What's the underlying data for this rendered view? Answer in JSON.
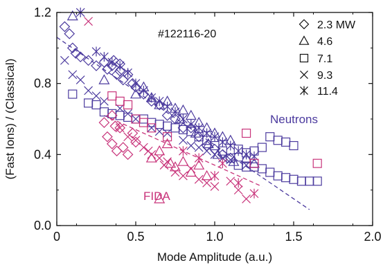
{
  "chart_data": {
    "type": "scatter",
    "xlabel": "Mode Amplitude (a.u.)",
    "ylabel": "(Fast Ions) / (Classical)",
    "xlim": [
      0,
      2.0
    ],
    "ylim": [
      0,
      1.2
    ],
    "xticks": [
      "0",
      "0.5",
      "1.0",
      "1.5",
      "2.0"
    ],
    "yticks": [
      "0.0",
      "0.4",
      "0.8",
      "1.2"
    ],
    "shot_label": "#122116-20",
    "colors": {
      "neutrons": "#4b3a9e",
      "fida": "#c8337a"
    },
    "annotations": [
      {
        "text": "Neutrons",
        "color_key": "neutrons"
      },
      {
        "text": "FIDA",
        "color_key": "fida"
      }
    ],
    "legend": [
      {
        "marker": "diamond",
        "label": "2.3 MW"
      },
      {
        "marker": "triangle",
        "label": "4.6"
      },
      {
        "marker": "square",
        "label": "7.1"
      },
      {
        "marker": "x",
        "label": "9.3"
      },
      {
        "marker": "asterisk",
        "label": "11.4"
      }
    ],
    "fit_lines": [
      {
        "name": "neutrons-fit",
        "color_key": "neutrons",
        "x": [
          0.0,
          1.6
        ],
        "y": [
          1.06,
          0.09
        ]
      },
      {
        "name": "fida-fit",
        "color_key": "fida",
        "x": [
          0.3,
          1.3
        ],
        "y": [
          0.62,
          0.22
        ]
      }
    ],
    "series": [
      {
        "group": "neutrons",
        "marker": "diamond",
        "points": [
          [
            0.05,
            1.12
          ],
          [
            0.08,
            1.08
          ],
          [
            0.1,
            1.0
          ],
          [
            0.12,
            0.97
          ],
          [
            0.15,
            0.95
          ],
          [
            0.2,
            0.93
          ],
          [
            0.25,
            0.9
          ],
          [
            0.3,
            0.92
          ],
          [
            0.32,
            0.88
          ],
          [
            0.35,
            0.9
          ],
          [
            0.38,
            0.85
          ],
          [
            0.4,
            0.87
          ],
          [
            0.42,
            0.82
          ],
          [
            0.45,
            0.85
          ],
          [
            0.48,
            0.8
          ],
          [
            0.5,
            0.78
          ],
          [
            0.55,
            0.74
          ],
          [
            0.6,
            0.7
          ],
          [
            0.65,
            0.68
          ],
          [
            0.7,
            0.62
          ],
          [
            0.75,
            0.6
          ],
          [
            0.8,
            0.55
          ],
          [
            0.85,
            0.55
          ],
          [
            0.9,
            0.5
          ],
          [
            0.95,
            0.45
          ],
          [
            1.0,
            0.43
          ],
          [
            1.05,
            0.4
          ],
          [
            1.1,
            0.38
          ],
          [
            0.36,
            0.93
          ],
          [
            0.4,
            0.91
          ]
        ]
      },
      {
        "group": "neutrons",
        "marker": "triangle",
        "points": [
          [
            0.1,
            1.18
          ],
          [
            0.3,
            0.82
          ],
          [
            0.5,
            0.74
          ],
          [
            0.6,
            0.72
          ],
          [
            0.65,
            0.68
          ],
          [
            0.7,
            0.7
          ],
          [
            0.75,
            0.66
          ],
          [
            0.8,
            0.65
          ],
          [
            0.85,
            0.62
          ],
          [
            0.9,
            0.58
          ],
          [
            0.95,
            0.55
          ],
          [
            1.0,
            0.52
          ],
          [
            1.05,
            0.5
          ],
          [
            1.1,
            0.48
          ],
          [
            0.55,
            0.78
          ],
          [
            0.78,
            0.6
          ],
          [
            0.88,
            0.52
          ],
          [
            0.96,
            0.46
          ],
          [
            1.02,
            0.4
          ],
          [
            1.12,
            0.36
          ],
          [
            1.2,
            0.38
          ],
          [
            1.25,
            0.35
          ]
        ]
      },
      {
        "group": "neutrons",
        "marker": "square",
        "points": [
          [
            0.1,
            0.74
          ],
          [
            0.2,
            0.69
          ],
          [
            0.25,
            0.68
          ],
          [
            0.3,
            0.64
          ],
          [
            0.35,
            0.63
          ],
          [
            0.4,
            0.62
          ],
          [
            0.45,
            0.61
          ],
          [
            0.5,
            0.6
          ],
          [
            0.55,
            0.6
          ],
          [
            0.6,
            0.58
          ],
          [
            0.65,
            0.57
          ],
          [
            0.7,
            0.56
          ],
          [
            0.75,
            0.55
          ],
          [
            0.8,
            0.54
          ],
          [
            0.85,
            0.53
          ],
          [
            0.9,
            0.5
          ],
          [
            0.95,
            0.48
          ],
          [
            1.0,
            0.45
          ],
          [
            1.05,
            0.42
          ],
          [
            1.1,
            0.38
          ],
          [
            1.15,
            0.34
          ],
          [
            1.2,
            0.33
          ],
          [
            1.25,
            0.33
          ],
          [
            1.3,
            0.32
          ],
          [
            1.35,
            0.3
          ],
          [
            1.4,
            0.28
          ],
          [
            1.45,
            0.27
          ],
          [
            1.5,
            0.26
          ],
          [
            1.55,
            0.25
          ],
          [
            1.6,
            0.25
          ],
          [
            1.65,
            0.25
          ],
          [
            1.35,
            0.5
          ],
          [
            1.4,
            0.48
          ],
          [
            1.45,
            0.47
          ],
          [
            1.5,
            0.45
          ],
          [
            1.3,
            0.44
          ],
          [
            1.25,
            0.42
          ],
          [
            1.2,
            0.41
          ],
          [
            1.15,
            0.43
          ]
        ]
      },
      {
        "group": "neutrons",
        "marker": "x",
        "points": [
          [
            0.05,
            0.93
          ],
          [
            0.1,
            0.85
          ],
          [
            0.15,
            0.82
          ],
          [
            0.2,
            0.76
          ],
          [
            0.25,
            0.73
          ],
          [
            0.3,
            0.7
          ],
          [
            0.4,
            0.66
          ],
          [
            0.5,
            0.6
          ],
          [
            0.6,
            0.55
          ],
          [
            0.7,
            0.52
          ],
          [
            0.8,
            0.48
          ],
          [
            0.9,
            0.44
          ],
          [
            1.0,
            0.4
          ],
          [
            1.1,
            0.37
          ],
          [
            1.2,
            0.34
          ],
          [
            0.45,
            0.63
          ],
          [
            0.65,
            0.53
          ],
          [
            0.85,
            0.45
          ],
          [
            0.95,
            0.42
          ],
          [
            1.05,
            0.38
          ]
        ]
      },
      {
        "group": "neutrons",
        "marker": "asterisk",
        "points": [
          [
            0.15,
            1.2
          ],
          [
            0.25,
            0.98
          ],
          [
            0.3,
            0.95
          ],
          [
            0.35,
            0.92
          ],
          [
            0.4,
            0.9
          ],
          [
            0.45,
            0.86
          ],
          [
            0.5,
            0.8
          ],
          [
            0.55,
            0.76
          ],
          [
            0.6,
            0.72
          ],
          [
            0.65,
            0.7
          ],
          [
            0.7,
            0.67
          ],
          [
            0.75,
            0.64
          ],
          [
            0.8,
            0.6
          ],
          [
            0.85,
            0.57
          ],
          [
            0.9,
            0.55
          ],
          [
            0.95,
            0.52
          ],
          [
            1.0,
            0.5
          ],
          [
            1.05,
            0.47
          ],
          [
            1.1,
            0.45
          ],
          [
            1.15,
            0.42
          ],
          [
            1.2,
            0.4
          ],
          [
            1.25,
            0.39
          ]
        ]
      },
      {
        "group": "fida",
        "marker": "diamond",
        "points": [
          [
            0.3,
            0.58
          ],
          [
            0.32,
            0.5
          ],
          [
            0.35,
            0.46
          ],
          [
            0.38,
            0.42
          ],
          [
            0.4,
            0.55
          ],
          [
            0.42,
            0.44
          ],
          [
            0.45,
            0.4
          ],
          [
            0.48,
            0.52
          ],
          [
            0.5,
            0.47
          ],
          [
            0.35,
            0.62
          ],
          [
            0.37,
            0.56
          ]
        ]
      },
      {
        "group": "fida",
        "marker": "triangle",
        "points": [
          [
            0.6,
            0.38
          ],
          [
            0.65,
            0.42
          ],
          [
            0.7,
            0.46
          ],
          [
            0.72,
            0.35
          ],
          [
            0.75,
            0.33
          ],
          [
            0.8,
            0.36
          ],
          [
            0.85,
            0.3
          ],
          [
            0.9,
            0.34
          ],
          [
            0.95,
            0.28
          ],
          [
            0.65,
            0.15
          ]
        ]
      },
      {
        "group": "fida",
        "marker": "square",
        "points": [
          [
            0.35,
            0.73
          ],
          [
            0.4,
            0.7
          ],
          [
            0.45,
            0.68
          ],
          [
            0.5,
            0.6
          ],
          [
            0.55,
            0.58
          ],
          [
            0.6,
            0.55
          ],
          [
            1.2,
            0.52
          ],
          [
            1.25,
            0.35
          ],
          [
            1.65,
            0.35
          ],
          [
            0.7,
            0.5
          ]
        ]
      },
      {
        "group": "fida",
        "marker": "x",
        "points": [
          [
            0.2,
            1.15
          ],
          [
            0.4,
            0.55
          ],
          [
            0.45,
            0.5
          ],
          [
            0.5,
            0.48
          ],
          [
            0.55,
            0.44
          ],
          [
            0.6,
            0.4
          ],
          [
            0.65,
            0.38
          ],
          [
            0.7,
            0.36
          ],
          [
            0.75,
            0.3
          ],
          [
            0.8,
            0.28
          ],
          [
            0.85,
            0.32
          ],
          [
            0.9,
            0.26
          ],
          [
            0.95,
            0.24
          ],
          [
            1.0,
            0.22
          ],
          [
            1.1,
            0.25
          ],
          [
            1.15,
            0.2
          ],
          [
            1.2,
            0.15
          ],
          [
            0.58,
            0.42
          ],
          [
            0.68,
            0.34
          ]
        ]
      },
      {
        "group": "fida",
        "marker": "asterisk",
        "points": [
          [
            0.8,
            0.42
          ],
          [
            0.9,
            0.38
          ],
          [
            1.0,
            0.28
          ],
          [
            1.05,
            0.35
          ],
          [
            1.15,
            0.24
          ],
          [
            1.25,
            0.18
          ]
        ]
      }
    ]
  }
}
